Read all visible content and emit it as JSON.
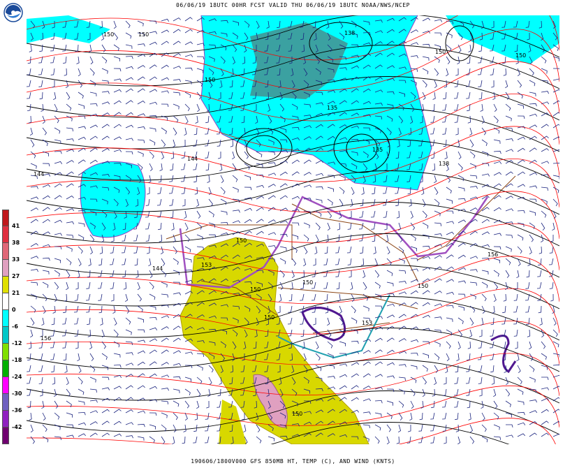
{
  "header": {
    "title": "06/06/19 18UTC 00HR FCST VALID THU 06/06/19 18UTC NOAA/NWS/NCEP"
  },
  "footer": {
    "caption": "190606/1800V000 GFS 850MB HT, TEMP (C), AND WIND (KNTS)"
  },
  "logo": {
    "name": "NOAA",
    "icon": "noaa-logo-icon"
  },
  "legend": {
    "labels": [
      "41",
      "38",
      "33",
      "27",
      "21",
      "0",
      "-6",
      "-12",
      "-18",
      "-24",
      "-30",
      "-36",
      "-42"
    ],
    "colors": [
      "#c0181c",
      "#e03040",
      "#e06878",
      "#e0a0c0",
      "#e0e000",
      "#ffffff",
      "#00ffff",
      "#00c8c8",
      "#80e000",
      "#00b000",
      "#ff00ff",
      "#7060c0",
      "#9020c0",
      "#700070"
    ]
  },
  "map": {
    "contour_labels": [
      "150",
      "138",
      "150",
      "150",
      "144",
      "135",
      "135",
      "138",
      "144",
      "150",
      "144",
      "153",
      "150",
      "150",
      "150",
      "150",
      "150",
      "153",
      "156",
      "156",
      "150",
      "150"
    ],
    "colors": {
      "height_contour": "#000000",
      "temp_contour": "#ff0000",
      "wind_barb": "#1a237e",
      "cold_fill": "#00ffff",
      "warm_fill": "#d8d800",
      "hot_fill": "#e0a0c0",
      "border": "#8b4513"
    }
  }
}
